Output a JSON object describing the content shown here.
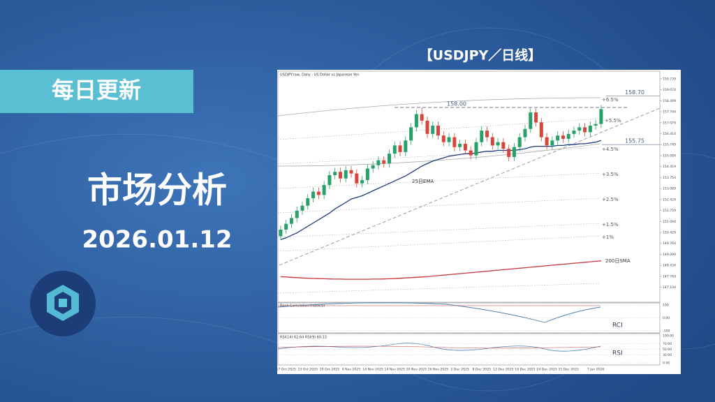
{
  "banner": {
    "tag": "每日更新",
    "title": "市场分析",
    "date": "2026.01.12"
  },
  "chart_data": {
    "type": "candlestick",
    "title": "【USDJPY／日线】",
    "subtitle": "USDJPY.raw, Daily : US Dollar vs Japanese Yen",
    "categories": [
      null,
      "17 Oct 2025",
      null,
      null,
      null,
      "23 Oct 2025",
      null,
      null,
      null,
      "29 Oct 2025",
      null,
      null,
      null,
      "4 Nov 2025",
      null,
      null,
      null,
      "10 Nov 2025",
      null,
      null,
      null,
      "14 Nov 2025",
      null,
      null,
      null,
      "20 Nov 2025",
      null,
      null,
      null,
      "26 Nov 2025",
      null,
      null,
      null,
      "2 Dec 2025",
      null,
      null,
      null,
      "8 Dec 2025",
      null,
      null,
      null,
      "12 Dec 2025",
      null,
      null,
      null,
      "18 Dec 2025",
      null,
      null,
      null,
      "24 Dec 2025",
      null,
      null,
      null,
      "31 Dec 2025",
      null,
      null,
      null,
      null,
      "7 Jan 2026",
      null
    ],
    "open": [
      150.2,
      150.6,
      150.95,
      151.3,
      151.75,
      152.05,
      152.5,
      152.9,
      152.7,
      153.3,
      153.9,
      154.1,
      153.7,
      154.2,
      154.0,
      153.4,
      153.6,
      154.3,
      154.5,
      154.8,
      154.6,
      155.2,
      155.7,
      155.3,
      156.0,
      156.8,
      157.6,
      157.2,
      156.4,
      156.9,
      156.3,
      155.9,
      156.2,
      155.6,
      155.8,
      155.4,
      155.1,
      155.9,
      156.6,
      156.2,
      155.7,
      155.9,
      155.5,
      155.0,
      155.6,
      156.2,
      156.7,
      157.7,
      157.1,
      156.2,
      155.7,
      156.0,
      156.3,
      156.1,
      156.4,
      156.6,
      156.8,
      156.5,
      156.9,
      157.0
    ],
    "high": [
      150.85,
      151.2,
      151.55,
      152.0,
      152.3,
      152.75,
      153.15,
      153.15,
      153.55,
      154.15,
      154.35,
      154.35,
      154.45,
      154.45,
      154.25,
      153.85,
      154.55,
      154.75,
      155.05,
      155.05,
      155.45,
      155.95,
      155.95,
      156.25,
      157.05,
      157.85,
      158.0,
      157.45,
      157.15,
      157.15,
      156.55,
      156.45,
      156.45,
      156.05,
      156.05,
      155.65,
      156.15,
      156.85,
      156.85,
      156.45,
      156.15,
      156.15,
      155.75,
      155.85,
      156.45,
      156.95,
      157.95,
      157.95,
      157.35,
      156.45,
      156.25,
      156.55,
      156.55,
      156.65,
      156.85,
      157.05,
      157.05,
      157.15,
      157.25,
      158.15
    ],
    "low": [
      149.95,
      150.35,
      150.7,
      151.05,
      151.5,
      151.8,
      152.25,
      152.45,
      152.45,
      153.05,
      153.65,
      153.45,
      153.45,
      153.75,
      153.15,
      153.15,
      153.35,
      154.05,
      154.25,
      154.35,
      154.35,
      154.95,
      155.05,
      155.05,
      155.75,
      156.55,
      156.95,
      156.15,
      156.15,
      156.05,
      155.65,
      155.65,
      155.35,
      155.35,
      155.15,
      154.85,
      154.85,
      155.65,
      155.95,
      155.45,
      155.45,
      155.25,
      154.75,
      154.75,
      155.35,
      155.95,
      156.45,
      156.85,
      155.95,
      155.45,
      155.45,
      155.75,
      155.85,
      155.85,
      156.15,
      156.35,
      156.25,
      156.25,
      156.65,
      156.75
    ],
    "close": [
      150.6,
      150.95,
      151.3,
      151.75,
      152.05,
      152.5,
      152.9,
      152.7,
      153.3,
      153.9,
      154.1,
      153.7,
      154.2,
      154.0,
      153.4,
      153.6,
      154.3,
      154.5,
      154.8,
      154.6,
      155.2,
      155.7,
      155.3,
      156.0,
      156.8,
      157.6,
      157.2,
      156.4,
      156.9,
      156.3,
      155.9,
      156.2,
      155.6,
      155.8,
      155.4,
      155.1,
      155.9,
      156.6,
      156.2,
      155.7,
      155.9,
      155.5,
      155.0,
      155.6,
      156.2,
      156.7,
      157.7,
      157.1,
      156.2,
      155.7,
      156.0,
      156.3,
      156.1,
      156.4,
      156.6,
      156.8,
      156.5,
      156.9,
      157.0,
      157.9
    ],
    "up_color": "#27a06a",
    "down_color": "#d8453a",
    "series": [
      {
        "name": "25日EMA",
        "color": "#1f3a7a",
        "values": [
          150.0,
          150.1,
          150.25,
          150.4,
          150.6,
          150.8,
          151.0,
          151.2,
          151.4,
          151.6,
          151.85,
          152.05,
          152.25,
          152.45,
          152.55,
          152.65,
          152.8,
          152.95,
          153.1,
          153.25,
          153.4,
          153.55,
          153.7,
          153.85,
          154.05,
          154.25,
          154.45,
          154.6,
          154.75,
          154.85,
          154.95,
          155.05,
          155.1,
          155.15,
          155.2,
          155.2,
          155.25,
          155.3,
          155.35,
          155.35,
          155.4,
          155.4,
          155.4,
          155.4,
          155.45,
          155.5,
          155.6,
          155.65,
          155.65,
          155.65,
          155.65,
          155.7,
          155.7,
          155.75,
          155.75,
          155.8,
          155.8,
          155.85,
          155.9,
          156.0
        ]
      },
      {
        "name": "200日SMA",
        "color": "#c8383a",
        "values": [
          147.75,
          147.73,
          147.71,
          147.69,
          147.67,
          147.65,
          147.64,
          147.63,
          147.62,
          147.61,
          147.6,
          147.6,
          147.59,
          147.59,
          147.59,
          147.59,
          147.59,
          147.6,
          147.6,
          147.61,
          147.62,
          147.63,
          147.65,
          147.67,
          147.69,
          147.71,
          147.73,
          147.75,
          147.78,
          147.81,
          147.84,
          147.87,
          147.9,
          147.93,
          147.96,
          147.99,
          148.02,
          148.05,
          148.08,
          148.11,
          148.14,
          148.17,
          148.2,
          148.23,
          148.26,
          148.29,
          148.32,
          148.35,
          148.38,
          148.41,
          148.44,
          148.47,
          148.5,
          148.53,
          148.56,
          148.59,
          148.62,
          148.65,
          148.68,
          148.71
        ]
      }
    ],
    "levels": [
      {
        "value": 158.0,
        "label": "158.00"
      },
      {
        "value": 158.7,
        "label": "158.70"
      },
      {
        "value": 155.75,
        "label": "155.75"
      }
    ],
    "bands": [
      "+6.5%",
      "+5.5%",
      "+4.5%",
      "+3.5%",
      "+2.5%",
      "+1.5%",
      "+1%"
    ],
    "ylim": [
      146.2,
      160.2
    ],
    "yticks": [
      159.739,
      159.074,
      158.409,
      157.744,
      157.079,
      156.414,
      155.749,
      155.084,
      154.419,
      153.754,
      153.089,
      152.424,
      151.759,
      151.094,
      150.429,
      149.764,
      149.099,
      148.434,
      147.769,
      147.104
    ],
    "rci": {
      "title": "Rank Correlation Index(9)",
      "label": "RCI",
      "ylim": [
        -100,
        100
      ],
      "yticks": [
        {
          "value": 100,
          "label": "100"
        },
        {
          "value": 0,
          "label": "0.00"
        },
        {
          "value": -100,
          "label": "-100"
        }
      ]
    },
    "rsi": {
      "title": "RSI(14) 62.64 RSI(9) 60.13",
      "label": "RSI",
      "ylim": [
        0,
        100
      ],
      "yticks": [
        {
          "value": 100,
          "label": "100.00"
        },
        {
          "value": 70,
          "label": "70.00"
        },
        {
          "value": 50,
          "label": "50.00"
        },
        {
          "value": 30,
          "label": "30.00"
        },
        {
          "value": 0,
          "label": "0.00"
        }
      ]
    }
  }
}
